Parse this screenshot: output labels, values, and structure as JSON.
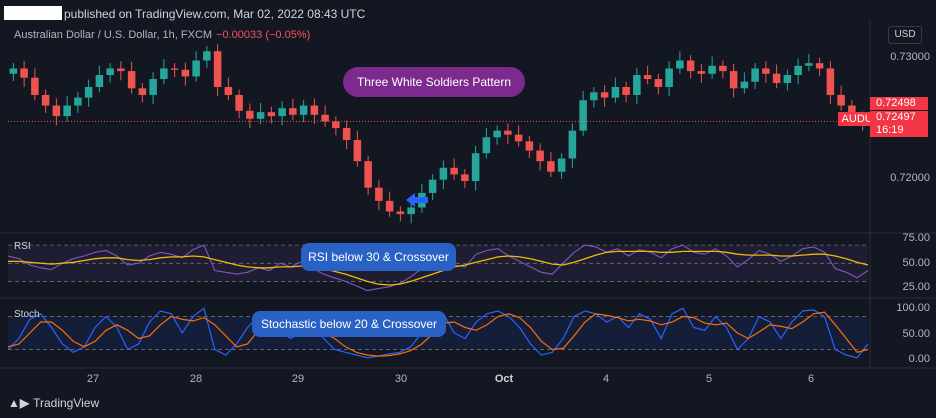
{
  "header": {
    "publisher_text": "published on TradingView.com, Mar 02, 2022 08:43 UTC",
    "symbol": "Australian Dollar / U.S. Dollar, 1h, FXCM",
    "change": "−0.00033 (−0.05%)",
    "currency": "USD"
  },
  "colors": {
    "up": "#26a69a",
    "down": "#ef5350",
    "rsi_line": "#7e57c2",
    "rsi_ma": "#f0b90b",
    "stoch_k": "#2962ff",
    "stoch_d": "#ff6d00"
  },
  "price_tags": {
    "symbol": "AUDUSD",
    "last": "0.72498",
    "current": "0.72497",
    "countdown": "16:19"
  },
  "annotations": {
    "pattern": "Three White Soldiers Pattern",
    "rsi": "RSI below 30 & Crossover",
    "stoch": "Stochastic below 20 & Crossover"
  },
  "panes": {
    "rsi_label": "RSI",
    "stoch_label": "Stoch"
  },
  "footer": {
    "brand": "TradingView"
  },
  "chart_data": {
    "type": "candlestick",
    "x_ticks": [
      "27",
      "28",
      "29",
      "30",
      "Oct",
      "4",
      "5",
      "6"
    ],
    "price_ticks": [
      "0.73000",
      "0.72000"
    ],
    "price_ylim": [
      0.7168,
      0.7313
    ],
    "rsi_ticks": [
      "75.00",
      "50.00",
      "25.00"
    ],
    "rsi_ylim": [
      15,
      80
    ],
    "stoch_ticks": [
      "100.00",
      "50.00",
      "0.00"
    ],
    "stoch_ylim": [
      -10,
      110
    ],
    "price_path": [
      0.729,
      0.7283,
      0.727,
      0.7262,
      0.7254,
      0.7262,
      0.7268,
      0.7276,
      0.7285,
      0.729,
      0.7288,
      0.7275,
      0.727,
      0.7282,
      0.729,
      0.7289,
      0.7284,
      0.7296,
      0.7303,
      0.7276,
      0.727,
      0.7258,
      0.7252,
      0.7257,
      0.7254,
      0.726,
      0.7255,
      0.7262,
      0.7255,
      0.725,
      0.7245,
      0.7236,
      0.722,
      0.72,
      0.719,
      0.7182,
      0.718,
      0.7185,
      0.7196,
      0.7206,
      0.7215,
      0.721,
      0.7205,
      0.7226,
      0.7238,
      0.7243,
      0.724,
      0.7235,
      0.7228,
      0.722,
      0.7212,
      0.7222,
      0.7243,
      0.7266,
      0.7272,
      0.7268,
      0.7276,
      0.727,
      0.7285,
      0.7282,
      0.7276,
      0.729,
      0.7296,
      0.7288,
      0.7286,
      0.7292,
      0.7288,
      0.7275,
      0.728,
      0.729,
      0.7286,
      0.7279,
      0.7285,
      0.7292,
      0.7294,
      0.729,
      0.727,
      0.7262,
      0.7252,
      0.725
    ],
    "rsi": [
      58,
      55,
      48,
      45,
      43,
      50,
      55,
      58,
      62,
      64,
      58,
      48,
      50,
      58,
      62,
      60,
      56,
      65,
      70,
      42,
      40,
      38,
      40,
      45,
      42,
      50,
      46,
      52,
      44,
      38,
      34,
      30,
      25,
      20,
      22,
      24,
      28,
      35,
      44,
      50,
      56,
      48,
      46,
      60,
      64,
      66,
      58,
      52,
      46,
      40,
      38,
      50,
      62,
      70,
      68,
      62,
      66,
      58,
      65,
      62,
      56,
      66,
      70,
      62,
      60,
      66,
      58,
      46,
      54,
      64,
      60,
      52,
      58,
      66,
      68,
      62,
      44,
      40,
      34,
      42
    ],
    "rsi_ma": [
      52,
      52,
      51,
      50,
      49,
      50,
      51,
      53,
      55,
      56,
      56,
      54,
      53,
      54,
      56,
      57,
      57,
      58,
      57,
      54,
      51,
      48,
      46,
      45,
      45,
      46,
      46,
      47,
      46,
      44,
      41,
      38,
      34,
      30,
      27,
      26,
      27,
      30,
      34,
      38,
      42,
      46,
      48,
      51,
      54,
      57,
      58,
      57,
      55,
      52,
      49,
      48,
      51,
      55,
      59,
      62,
      63,
      63,
      63,
      63,
      62,
      62,
      63,
      63,
      63,
      63,
      62,
      60,
      59,
      59,
      59,
      58,
      58,
      59,
      60,
      60,
      58,
      55,
      51,
      48
    ],
    "stoch_k": [
      20,
      40,
      75,
      85,
      60,
      30,
      15,
      25,
      60,
      80,
      60,
      20,
      30,
      70,
      90,
      85,
      50,
      80,
      95,
      20,
      10,
      30,
      60,
      80,
      70,
      50,
      40,
      55,
      60,
      40,
      20,
      15,
      10,
      5,
      8,
      12,
      15,
      25,
      50,
      70,
      85,
      50,
      40,
      70,
      85,
      90,
      80,
      60,
      30,
      10,
      15,
      40,
      80,
      90,
      85,
      70,
      80,
      60,
      85,
      75,
      40,
      85,
      95,
      60,
      55,
      80,
      60,
      20,
      40,
      80,
      70,
      40,
      70,
      90,
      92,
      80,
      20,
      10,
      5,
      30
    ],
    "stoch_d": [
      25,
      30,
      50,
      70,
      70,
      55,
      35,
      25,
      35,
      55,
      65,
      55,
      40,
      45,
      65,
      80,
      75,
      72,
      78,
      65,
      45,
      25,
      30,
      55,
      70,
      68,
      55,
      48,
      52,
      50,
      40,
      25,
      15,
      10,
      8,
      9,
      12,
      18,
      30,
      48,
      68,
      70,
      60,
      55,
      65,
      80,
      85,
      78,
      60,
      35,
      20,
      22,
      45,
      70,
      85,
      82,
      78,
      72,
      75,
      72,
      65,
      70,
      80,
      78,
      68,
      65,
      68,
      50,
      40,
      52,
      65,
      62,
      58,
      70,
      85,
      88,
      65,
      40,
      15,
      20
    ]
  }
}
